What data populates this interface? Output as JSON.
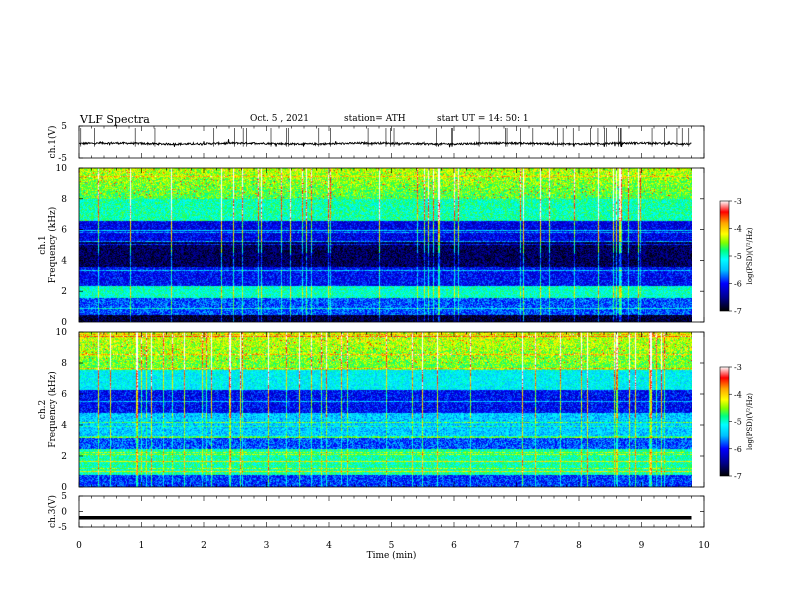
{
  "header": {
    "title": "VLF  Spectra",
    "date": "Oct. 5  , 2021",
    "station": "station= ATH",
    "start_ut": "start  UT  =    14: 50: 1"
  },
  "chart_data": [
    {
      "type": "line",
      "panel": "ch1-waveform",
      "ylabel": "ch.1(V)",
      "ylim": [
        -5,
        5
      ],
      "yticks": [
        "5",
        "-5"
      ],
      "xlim": [
        0,
        10
      ],
      "baseline": -0.5,
      "series": [
        {
          "values_description_only": false,
          "baseline_V": -0.5,
          "noise_V": 0.5
        }
      ]
    },
    {
      "type": "heatmap",
      "panel": "ch1-spectrogram",
      "ylabel": "ch.1\nFrequency  (kHz)",
      "ylim": [
        0,
        10
      ],
      "yticks": [
        "0",
        "2",
        "4",
        "6",
        "8",
        "10"
      ],
      "xlim": [
        0,
        9.8
      ],
      "colorbar": {
        "label": "log(PSD)(V²/Hz)",
        "range": [
          -7,
          -3
        ],
        "ticks": [
          "-3",
          "-4",
          "-5",
          "-6",
          "-7"
        ]
      }
    },
    {
      "type": "heatmap",
      "panel": "ch2-spectrogram",
      "ylabel": "ch.2\nFrequency  (kHz)",
      "ylim": [
        0,
        10
      ],
      "yticks": [
        "0",
        "2",
        "4",
        "6",
        "8",
        "10"
      ],
      "xlim": [
        0,
        9.8
      ],
      "colorbar": {
        "label": "log(PSD)(V²/Hz)",
        "range": [
          -7,
          -3
        ],
        "ticks": [
          "-3",
          "-4",
          "-5",
          "-6",
          "-7"
        ]
      }
    },
    {
      "type": "line",
      "panel": "ch3-waveform",
      "ylabel": "ch.3(V)",
      "ylim": [
        -5,
        5
      ],
      "yticks": [
        "5",
        "0",
        "-5"
      ],
      "xlim": [
        0,
        10
      ],
      "baseline": -2
    }
  ],
  "xaxis": {
    "label": "Time  (min)",
    "ticks": [
      "0",
      "1",
      "2",
      "3",
      "4",
      "5",
      "6",
      "7",
      "8",
      "9",
      "10"
    ]
  },
  "colors": {
    "colormap": [
      "#000000",
      "#00008b",
      "#0000ff",
      "#00bfff",
      "#00ffff",
      "#00ff7f",
      "#7fff00",
      "#ffff00",
      "#ffa500",
      "#ff0000",
      "#ffffff"
    ]
  }
}
